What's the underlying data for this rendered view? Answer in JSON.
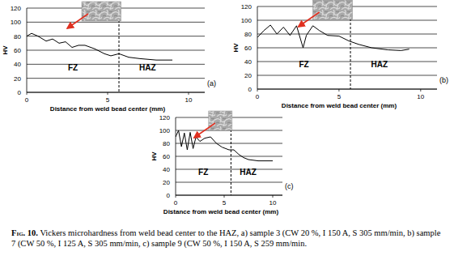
{
  "chart_data": [
    {
      "type": "line",
      "panel_label": "(a)",
      "y_label": "HV",
      "x_label": "Distance from weld bead center (mm)",
      "xlim": [
        0,
        11
      ],
      "xticks": [
        0,
        5,
        10
      ],
      "ylim": [
        0,
        120
      ],
      "yticks": [
        0,
        20,
        40,
        60,
        80,
        100,
        120
      ],
      "grid": true,
      "zones": [
        "FZ",
        "HAZ"
      ],
      "boundary_x": 5.7,
      "x": [
        0,
        0.3,
        0.7,
        1.2,
        1.6,
        2.0,
        2.4,
        2.8,
        3.2,
        3.6,
        4.2,
        4.8,
        5.2,
        5.7,
        6.3,
        7.0,
        8.0,
        9.0
      ],
      "series": [
        {
          "color": "#000000",
          "values": [
            80,
            84,
            80,
            73,
            76,
            70,
            72,
            64,
            67,
            67,
            62,
            55,
            52,
            55,
            50,
            48,
            46,
            46
          ]
        }
      ]
    },
    {
      "type": "line",
      "panel_label": "(b)",
      "y_label": "HV",
      "x_label": "Distance from weld bead center (mm)",
      "xlim": [
        0,
        11
      ],
      "xticks": [
        0,
        5,
        10
      ],
      "ylim": [
        0,
        120
      ],
      "yticks": [
        0,
        20,
        40,
        60,
        80,
        100,
        120
      ],
      "grid": true,
      "zones": [
        "FZ",
        "HAZ"
      ],
      "boundary_x": 5.7,
      "x": [
        0,
        0.4,
        0.8,
        1.2,
        1.6,
        2.0,
        2.4,
        2.8,
        3.0,
        3.4,
        3.8,
        4.3,
        5.0,
        5.6,
        6.2,
        7.0,
        8.0,
        8.8,
        9.3
      ],
      "series": [
        {
          "color": "#000000",
          "values": [
            75,
            85,
            93,
            80,
            90,
            78,
            92,
            60,
            78,
            92,
            85,
            78,
            77,
            70,
            65,
            60,
            57,
            56,
            58
          ]
        }
      ]
    },
    {
      "type": "line",
      "panel_label": "(c)",
      "y_label": "HV",
      "x_label": "Distance from weld bead center (mm)",
      "xlim": [
        0,
        11
      ],
      "xticks": [
        0,
        5,
        10
      ],
      "ylim": [
        0,
        120
      ],
      "yticks": [
        0,
        20,
        40,
        60,
        80,
        100,
        120
      ],
      "grid": true,
      "zones": [
        "FZ",
        "HAZ"
      ],
      "boundary_x": 5.7,
      "x": [
        0,
        0.3,
        0.6,
        0.9,
        1.2,
        1.5,
        1.8,
        2.1,
        2.5,
        3.0,
        3.6,
        4.2,
        4.8,
        5.5,
        6.0,
        6.5,
        7.0,
        7.5,
        8.5,
        10.0
      ],
      "series": [
        {
          "color": "#000000",
          "values": [
            90,
            100,
            75,
            96,
            70,
            97,
            72,
            90,
            83,
            88,
            90,
            80,
            74,
            70,
            70,
            63,
            58,
            55,
            53,
            53
          ]
        }
      ]
    }
  ],
  "caption": {
    "label": "Fig. 10.",
    "text": "Vickers microhardness from weld bead center to the HAZ, a) sample 3 (CW 20 %, I 150 A, S 305 mm/min, b) sample 7 (CW 50 %, I 125 A, S 305 mm/min, c) sample 9 (CW 50 %, I 150 A, S 259 mm/min."
  }
}
